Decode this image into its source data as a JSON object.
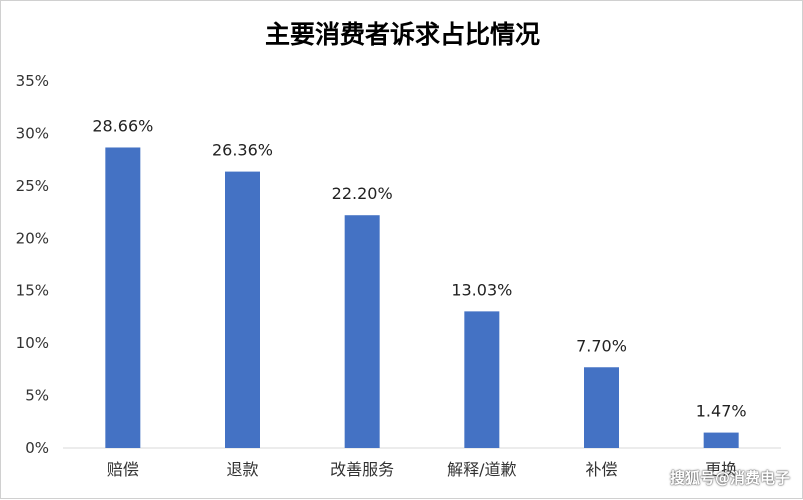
{
  "chart_data": {
    "type": "bar",
    "title": "主要消费者诉求占比情况",
    "categories": [
      "赔偿",
      "退款",
      "改善服务",
      "解释/道歉",
      "补偿",
      "更换"
    ],
    "values": [
      28.66,
      26.36,
      22.2,
      13.03,
      7.7,
      1.47
    ],
    "value_labels": [
      "28.66%",
      "26.36%",
      "22.20%",
      "13.03%",
      "7.70%",
      "1.47%"
    ],
    "ylim": [
      0,
      35
    ],
    "yticks": [
      "0%",
      "5%",
      "10%",
      "15%",
      "20%",
      "25%",
      "30%",
      "35%"
    ],
    "xlabel": "",
    "ylabel": "",
    "grid": false,
    "bar_color": "#4472C4"
  },
  "watermark": "搜狐号@消费电子"
}
